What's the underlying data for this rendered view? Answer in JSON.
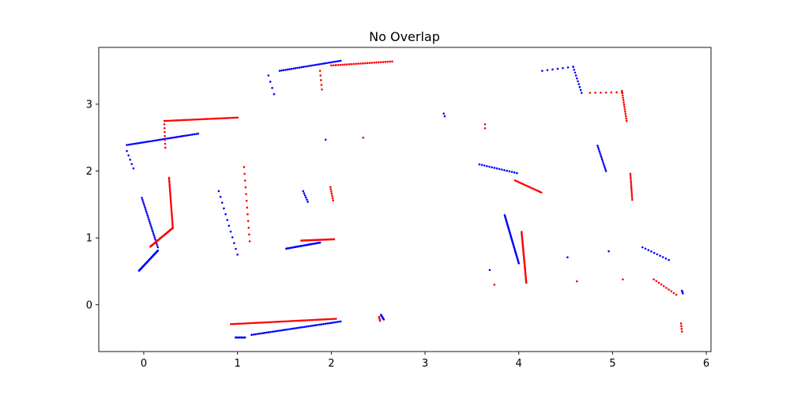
{
  "chart_data": {
    "type": "scatter",
    "title": "No Overlap",
    "xlabel": "",
    "ylabel": "",
    "xlim": [
      -0.48,
      6.05
    ],
    "ylim": [
      -0.7,
      3.85
    ],
    "xticks": [
      0,
      1,
      2,
      3,
      4,
      5,
      6
    ],
    "yticks": [
      0,
      1,
      2,
      3
    ],
    "grid": false,
    "colors": {
      "blue": "#0000ff",
      "red": "#ff0000"
    },
    "series": [
      {
        "color": "#0000ff",
        "segments": [
          {
            "from": [
              -0.18,
              2.39
            ],
            "to": [
              0.58,
              2.56
            ],
            "n": 40
          },
          {
            "from": [
              -0.18,
              2.3
            ],
            "to": [
              -0.11,
              2.04
            ],
            "n": 5
          },
          {
            "from": [
              -0.02,
              1.6
            ],
            "to": [
              0.15,
              0.86
            ],
            "n": 26
          },
          {
            "from": [
              -0.05,
              0.51
            ],
            "to": [
              0.15,
              0.81
            ],
            "n": 40
          },
          {
            "from": [
              0.8,
              1.7
            ],
            "to": [
              1.0,
              0.75
            ],
            "n": 12
          },
          {
            "from": [
              1.33,
              3.43
            ],
            "to": [
              1.39,
              3.15
            ],
            "n": 4
          },
          {
            "from": [
              1.45,
              3.5
            ],
            "to": [
              2.1,
              3.65
            ],
            "n": 32
          },
          {
            "from": [
              1.7,
              1.7
            ],
            "to": [
              1.75,
              1.54
            ],
            "n": 6
          },
          {
            "from": [
              1.52,
              0.84
            ],
            "to": [
              1.88,
              0.93
            ],
            "n": 30
          },
          {
            "from": [
              0.98,
              -0.49
            ],
            "to": [
              1.08,
              -0.49
            ],
            "n": 10
          },
          {
            "from": [
              1.15,
              -0.45
            ],
            "to": [
              2.1,
              -0.25
            ],
            "n": 48
          },
          {
            "from": [
              2.53,
              -0.15
            ],
            "to": [
              2.56,
              -0.22
            ],
            "n": 6
          },
          {
            "from": [
              3.2,
              2.86
            ],
            "to": [
              3.21,
              2.82
            ],
            "n": 2
          },
          {
            "from": [
              3.58,
              2.1
            ],
            "to": [
              3.98,
              1.97
            ],
            "n": 16
          },
          {
            "from": [
              3.85,
              1.34
            ],
            "to": [
              4.0,
              0.62
            ],
            "n": 40
          },
          {
            "from": [
              4.25,
              3.5
            ],
            "to": [
              4.58,
              3.56
            ],
            "n": 7
          },
          {
            "from": [
              4.58,
              3.56
            ],
            "to": [
              4.67,
              3.17
            ],
            "n": 10
          },
          {
            "from": [
              4.84,
              2.38
            ],
            "to": [
              4.93,
              2.0
            ],
            "n": 14
          },
          {
            "from": [
              5.32,
              0.86
            ],
            "to": [
              5.6,
              0.67
            ],
            "n": 10
          },
          {
            "from": [
              5.74,
              0.21
            ],
            "to": [
              5.75,
              0.17
            ],
            "n": 3
          }
        ],
        "points": [
          [
            1.94,
            2.47
          ],
          [
            3.69,
            0.52
          ],
          [
            4.52,
            0.71
          ],
          [
            4.96,
            0.8
          ]
        ]
      },
      {
        "color": "#ff0000",
        "segments": [
          {
            "from": [
              0.22,
              2.75
            ],
            "to": [
              1.0,
              2.8
            ],
            "n": 42
          },
          {
            "from": [
              0.22,
              2.7
            ],
            "to": [
              0.23,
              2.35
            ],
            "n": 7
          },
          {
            "from": [
              0.27,
              1.9
            ],
            "to": [
              0.31,
              1.15
            ],
            "n": 30
          },
          {
            "from": [
              0.07,
              0.87
            ],
            "to": [
              0.31,
              1.15
            ],
            "n": 40
          },
          {
            "from": [
              1.07,
              2.06
            ],
            "to": [
              1.13,
              0.95
            ],
            "n": 12
          },
          {
            "from": [
              1.88,
              3.5
            ],
            "to": [
              1.9,
              3.22
            ],
            "n": 5
          },
          {
            "from": [
              2.0,
              3.58
            ],
            "to": [
              2.65,
              3.64
            ],
            "n": 28
          },
          {
            "from": [
              1.99,
              1.76
            ],
            "to": [
              2.02,
              1.56
            ],
            "n": 7
          },
          {
            "from": [
              1.68,
              0.96
            ],
            "to": [
              2.03,
              0.98
            ],
            "n": 28
          },
          {
            "from": [
              0.93,
              -0.29
            ],
            "to": [
              2.05,
              -0.21
            ],
            "n": 60
          },
          {
            "from": [
              2.51,
              -0.18
            ],
            "to": [
              2.52,
              -0.24
            ],
            "n": 4
          },
          {
            "from": [
              3.64,
              2.7
            ],
            "to": [
              3.64,
              2.64
            ],
            "n": 2
          },
          {
            "from": [
              3.96,
              1.86
            ],
            "to": [
              4.24,
              1.68
            ],
            "n": 18
          },
          {
            "from": [
              4.03,
              1.09
            ],
            "to": [
              4.08,
              0.33
            ],
            "n": 40
          },
          {
            "from": [
              4.76,
              3.17
            ],
            "to": [
              5.1,
              3.18
            ],
            "n": 7
          },
          {
            "from": [
              5.1,
              3.2
            ],
            "to": [
              5.15,
              2.75
            ],
            "n": 14
          },
          {
            "from": [
              5.19,
              1.96
            ],
            "to": [
              5.21,
              1.57
            ],
            "n": 14
          },
          {
            "from": [
              5.44,
              0.38
            ],
            "to": [
              5.68,
              0.15
            ],
            "n": 10
          },
          {
            "from": [
              5.73,
              -0.28
            ],
            "to": [
              5.74,
              -0.4
            ],
            "n": 4
          }
        ],
        "points": [
          [
            2.34,
            2.5
          ],
          [
            3.74,
            0.3
          ],
          [
            4.62,
            0.35
          ],
          [
            5.11,
            0.38
          ]
        ]
      }
    ]
  }
}
